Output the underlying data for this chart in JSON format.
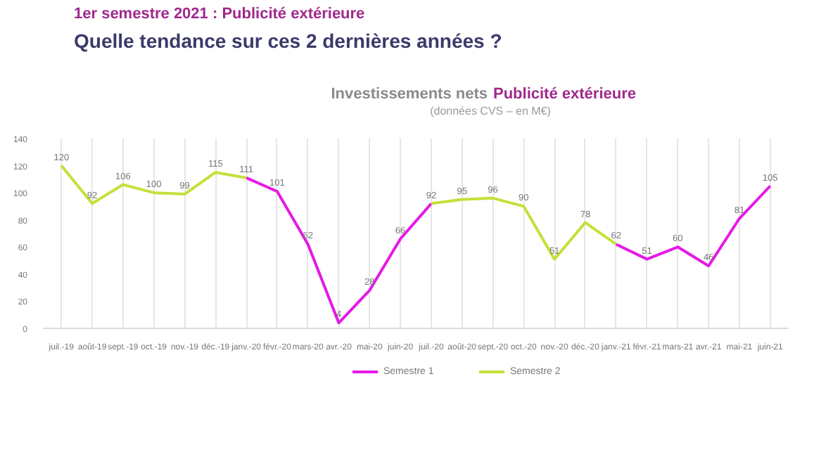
{
  "chart_data": {
    "type": "line",
    "annotations": [
      "1er semestre 2021 : Publicité extérieure",
      "Quelle tendance sur ces 2 dernières années ?"
    ],
    "title": "Investissements nets Publicité extérieure",
    "subtitle": "(données CVS – en M€)",
    "categories": [
      "juil.-19",
      "août-19",
      "sept.-19",
      "oct.-19",
      "nov.-19",
      "déc.-19",
      "janv.-20",
      "févr.-20",
      "mars-20",
      "avr.-20",
      "mai-20",
      "juin-20",
      "juil.-20",
      "août-20",
      "sept.-20",
      "oct.-20",
      "nov.-20",
      "déc.-20",
      "janv.-21",
      "févr.-21",
      "mars-21",
      "avr.-21",
      "mai-21",
      "juin-21"
    ],
    "series": [
      {
        "name": "Semestre 1",
        "color": "#e619e6",
        "values": [
          null,
          null,
          null,
          null,
          null,
          null,
          111,
          101,
          62,
          4,
          28,
          66,
          92,
          null,
          null,
          null,
          null,
          null,
          62,
          51,
          60,
          46,
          81,
          105
        ],
        "value_labels": [
          null,
          null,
          null,
          null,
          null,
          null,
          "111",
          "101",
          "62",
          "4",
          "28",
          "66",
          null,
          null,
          null,
          null,
          null,
          null,
          "62",
          "51",
          "60",
          "46",
          "81",
          "105"
        ]
      },
      {
        "name": "Semestre 2",
        "color": "#c5e03a",
        "values": [
          120,
          92,
          106,
          100,
          99,
          115,
          111,
          null,
          null,
          null,
          null,
          null,
          92,
          95,
          96,
          90,
          51,
          78,
          62,
          null,
          null,
          null,
          null,
          null
        ],
        "value_labels": [
          "120",
          "92",
          "106",
          "100",
          "99",
          "115",
          null,
          null,
          null,
          null,
          null,
          null,
          "92",
          "95",
          "96",
          "90",
          "51",
          "78",
          null,
          null,
          null,
          null,
          null,
          null
        ]
      }
    ],
    "ylim": [
      0,
      140
    ],
    "yticks": [
      0,
      20,
      40,
      60,
      80,
      100,
      120,
      140
    ],
    "grid": "x",
    "legend": "bottom",
    "data_labels": true
  }
}
